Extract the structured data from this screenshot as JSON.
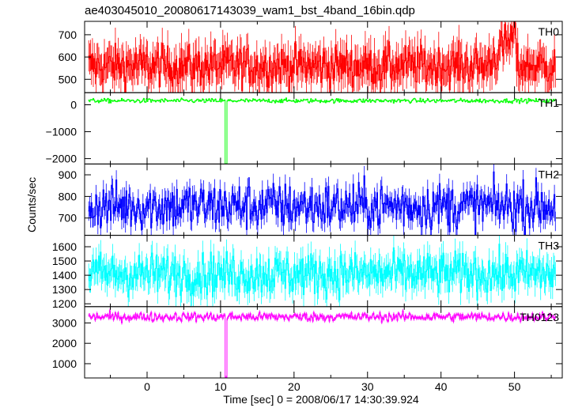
{
  "chart_data": {
    "type": "line",
    "title": "ae403045010_20080617143039_wam1_bst_4band_16bin.qdp",
    "xlabel": "Time [sec] 0 = 2008/06/17 14:30:39.924",
    "ylabel": "Counts/sec",
    "xlim": [
      -8.5,
      56.5
    ],
    "x_ticks": [
      0,
      10,
      20,
      30,
      40,
      50
    ],
    "grid": false,
    "panels": [
      {
        "name": "TH0",
        "color": "#ff0000",
        "ylim": [
          440,
          760
        ],
        "yticks": [
          500,
          600,
          700
        ],
        "mean": 560,
        "noise": 45,
        "errbar": 70,
        "features": [
          {
            "x": 49.5,
            "y": 700,
            "note": "rise before drop"
          },
          {
            "x": 50.5,
            "y": 560
          }
        ]
      },
      {
        "name": "TH1",
        "color": "#00ff00",
        "ylim": [
          -2200,
          450
        ],
        "yticks": [
          0,
          -1000,
          -2000
        ],
        "mean": 150,
        "noise": 40,
        "errbar": 25,
        "features": [
          {
            "x": 10.7,
            "y": -2200,
            "note": "dropout spike"
          }
        ]
      },
      {
        "name": "TH2",
        "color": "#0000ff",
        "ylim": [
          620,
          950
        ],
        "yticks": [
          700,
          800,
          900
        ],
        "mean": 755,
        "noise": 55,
        "errbar": 45
      },
      {
        "name": "TH3",
        "color": "#00ffff",
        "ylim": [
          1180,
          1680
        ],
        "yticks": [
          1200,
          1300,
          1400,
          1500,
          1600
        ],
        "mean": 1410,
        "noise": 75,
        "errbar": 85
      },
      {
        "name": "TH0123",
        "color": "#ff00ff",
        "ylim": [
          300,
          3800
        ],
        "yticks": [
          1000,
          2000,
          3000
        ],
        "mean": 3300,
        "noise": 110,
        "errbar": 90,
        "features": [
          {
            "x": 10.7,
            "y": 320,
            "note": "dropout spike"
          }
        ]
      }
    ]
  }
}
